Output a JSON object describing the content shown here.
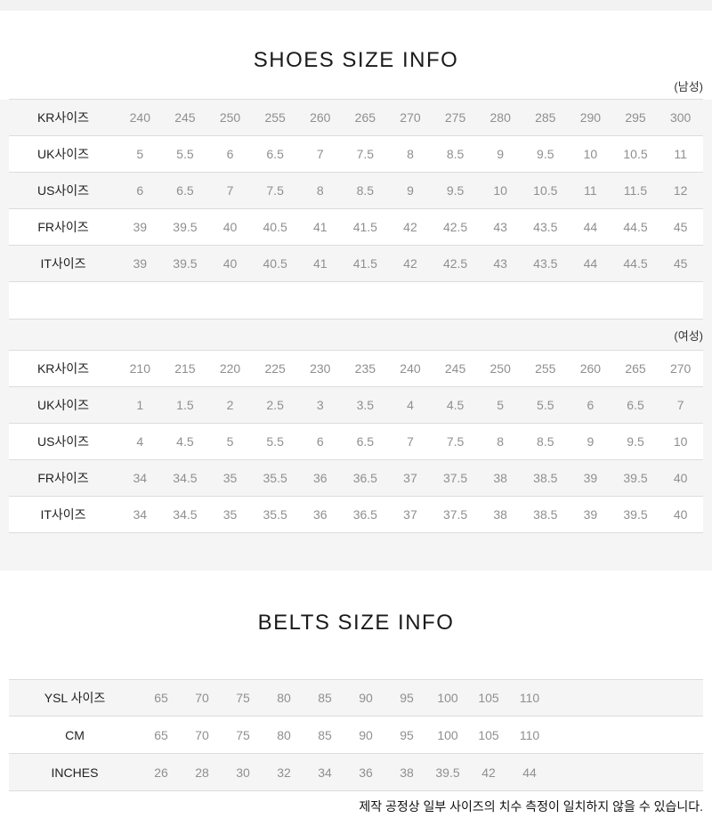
{
  "titles": {
    "shoes": "SHOES SIZE INFO",
    "belts": "BELTS SIZE INFO"
  },
  "shoes": {
    "men": {
      "section_label": "(남성)",
      "rows": [
        {
          "label": "KR사이즈",
          "values": [
            "240",
            "245",
            "250",
            "255",
            "260",
            "265",
            "270",
            "275",
            "280",
            "285",
            "290",
            "295",
            "300"
          ]
        },
        {
          "label": "UK사이즈",
          "values": [
            "5",
            "5.5",
            "6",
            "6.5",
            "7",
            "7.5",
            "8",
            "8.5",
            "9",
            "9.5",
            "10",
            "10.5",
            "11"
          ]
        },
        {
          "label": "US사이즈",
          "values": [
            "6",
            "6.5",
            "7",
            "7.5",
            "8",
            "8.5",
            "9",
            "9.5",
            "10",
            "10.5",
            "11",
            "11.5",
            "12"
          ]
        },
        {
          "label": "FR사이즈",
          "values": [
            "39",
            "39.5",
            "40",
            "40.5",
            "41",
            "41.5",
            "42",
            "42.5",
            "43",
            "43.5",
            "44",
            "44.5",
            "45"
          ]
        },
        {
          "label": "IT사이즈",
          "values": [
            "39",
            "39.5",
            "40",
            "40.5",
            "41",
            "41.5",
            "42",
            "42.5",
            "43",
            "43.5",
            "44",
            "44.5",
            "45"
          ]
        }
      ]
    },
    "women": {
      "section_label": "(여성)",
      "rows": [
        {
          "label": "KR사이즈",
          "values": [
            "210",
            "215",
            "220",
            "225",
            "230",
            "235",
            "240",
            "245",
            "250",
            "255",
            "260",
            "265",
            "270"
          ]
        },
        {
          "label": "UK사이즈",
          "values": [
            "1",
            "1.5",
            "2",
            "2.5",
            "3",
            "3.5",
            "4",
            "4.5",
            "5",
            "5.5",
            "6",
            "6.5",
            "7"
          ]
        },
        {
          "label": "US사이즈",
          "values": [
            "4",
            "4.5",
            "5",
            "5.5",
            "6",
            "6.5",
            "7",
            "7.5",
            "8",
            "8.5",
            "9",
            "9.5",
            "10"
          ]
        },
        {
          "label": "FR사이즈",
          "values": [
            "34",
            "34.5",
            "35",
            "35.5",
            "36",
            "36.5",
            "37",
            "37.5",
            "38",
            "38.5",
            "39",
            "39.5",
            "40"
          ]
        },
        {
          "label": "IT사이즈",
          "values": [
            "34",
            "34.5",
            "35",
            "35.5",
            "36",
            "36.5",
            "37",
            "37.5",
            "38",
            "38.5",
            "39",
            "39.5",
            "40"
          ]
        }
      ]
    }
  },
  "belts": {
    "rows": [
      {
        "label": "YSL 사이즈",
        "values": [
          "65",
          "70",
          "75",
          "80",
          "85",
          "90",
          "95",
          "100",
          "105",
          "110"
        ]
      },
      {
        "label": "CM",
        "values": [
          "65",
          "70",
          "75",
          "80",
          "85",
          "90",
          "95",
          "100",
          "105",
          "110"
        ]
      },
      {
        "label": "INCHES",
        "values": [
          "26",
          "28",
          "30",
          "32",
          "34",
          "36",
          "38",
          "39.5",
          "42",
          "44"
        ]
      }
    ]
  },
  "footer": {
    "note": "제작 공정상 일부 사이즈의 치수 측정이 일치하지 않을 수 있습니다."
  },
  "colors": {
    "stripe": "#f5f5f5",
    "border": "#dcdcdc",
    "label_text": "#222222",
    "value_text": "#8f8f8f",
    "title_text": "#1a1a1a"
  }
}
